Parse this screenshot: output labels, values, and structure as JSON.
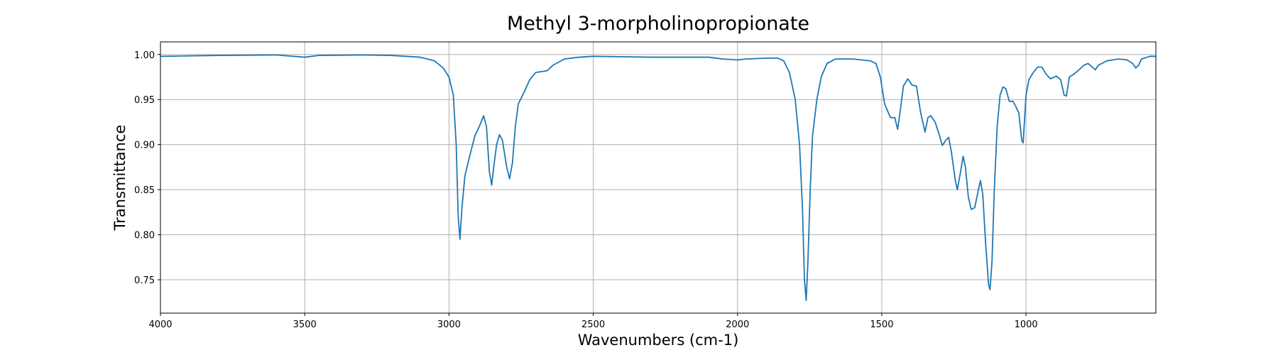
{
  "chart_data": {
    "type": "line",
    "title": "Methyl 3-morpholinopropionate",
    "x_label": "Wavenumbers (cm-1)",
    "y_label": "Transmittance",
    "color": "#1f77b4",
    "grid": true,
    "xlim": [
      4000,
      550
    ],
    "ylim": [
      0.713,
      1.014
    ],
    "xticks": [
      4000,
      3500,
      3000,
      2500,
      2000,
      1500,
      1000
    ],
    "yticks": [
      0.75,
      {
        "value": 0.8,
        "label": "0.80"
      },
      0.85,
      {
        "value": 0.9,
        "label": "0.90"
      },
      0.95,
      {
        "value": 1,
        "label": "1.00"
      }
    ],
    "x": [
      4000,
      3800,
      3600,
      3500,
      3450,
      3300,
      3200,
      3100,
      3050,
      3020,
      3000,
      2985,
      2975,
      2968,
      2962,
      2955,
      2945,
      2930,
      2910,
      2895,
      2880,
      2870,
      2860,
      2852,
      2845,
      2835,
      2825,
      2815,
      2800,
      2790,
      2780,
      2770,
      2760,
      2740,
      2720,
      2700,
      2680,
      2660,
      2640,
      2600,
      2550,
      2500,
      2300,
      2100,
      2050,
      2000,
      1970,
      1900,
      1860,
      1840,
      1820,
      1800,
      1785,
      1775,
      1768,
      1762,
      1756,
      1748,
      1740,
      1725,
      1710,
      1690,
      1660,
      1600,
      1540,
      1520,
      1505,
      1490,
      1470,
      1455,
      1445,
      1435,
      1425,
      1410,
      1395,
      1380,
      1365,
      1350,
      1340,
      1330,
      1315,
      1300,
      1290,
      1278,
      1268,
      1258,
      1245,
      1238,
      1228,
      1218,
      1210,
      1200,
      1190,
      1178,
      1165,
      1158,
      1150,
      1140,
      1130,
      1125,
      1118,
      1110,
      1100,
      1090,
      1080,
      1070,
      1058,
      1045,
      1035,
      1025,
      1015,
      1010,
      1000,
      990,
      975,
      960,
      945,
      930,
      915,
      895,
      880,
      868,
      860,
      850,
      835,
      820,
      800,
      785,
      770,
      760,
      750,
      720,
      680,
      650,
      630,
      620,
      610,
      600,
      570,
      550
    ],
    "values": [
      0.998,
      0.999,
      0.9995,
      0.997,
      0.999,
      0.9995,
      0.999,
      0.997,
      0.993,
      0.985,
      0.975,
      0.955,
      0.9,
      0.82,
      0.795,
      0.83,
      0.865,
      0.885,
      0.91,
      0.92,
      0.932,
      0.92,
      0.87,
      0.855,
      0.875,
      0.9,
      0.911,
      0.905,
      0.875,
      0.862,
      0.88,
      0.92,
      0.945,
      0.958,
      0.972,
      0.98,
      0.981,
      0.982,
      0.988,
      0.995,
      0.997,
      0.998,
      0.997,
      0.997,
      0.995,
      0.994,
      0.995,
      0.996,
      0.996,
      0.993,
      0.98,
      0.95,
      0.9,
      0.83,
      0.75,
      0.727,
      0.77,
      0.85,
      0.91,
      0.95,
      0.975,
      0.99,
      0.995,
      0.995,
      0.993,
      0.99,
      0.975,
      0.945,
      0.93,
      0.93,
      0.917,
      0.94,
      0.965,
      0.973,
      0.966,
      0.965,
      0.935,
      0.914,
      0.93,
      0.932,
      0.925,
      0.91,
      0.899,
      0.905,
      0.908,
      0.89,
      0.86,
      0.85,
      0.868,
      0.887,
      0.875,
      0.842,
      0.828,
      0.83,
      0.85,
      0.86,
      0.845,
      0.79,
      0.745,
      0.739,
      0.77,
      0.85,
      0.92,
      0.955,
      0.964,
      0.962,
      0.948,
      0.948,
      0.942,
      0.935,
      0.905,
      0.902,
      0.955,
      0.972,
      0.98,
      0.986,
      0.986,
      0.978,
      0.973,
      0.976,
      0.972,
      0.955,
      0.954,
      0.975,
      0.978,
      0.982,
      0.988,
      0.99,
      0.986,
      0.983,
      0.988,
      0.993,
      0.995,
      0.994,
      0.99,
      0.985,
      0.988,
      0.995,
      0.998,
      0.998
    ]
  }
}
